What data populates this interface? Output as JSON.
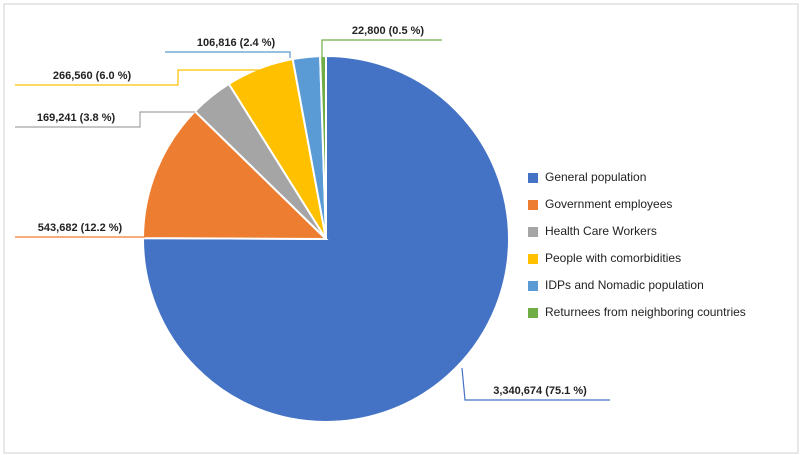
{
  "chart_data": {
    "type": "pie",
    "categories": [
      "General population",
      "Government employees",
      "Health Care Workers",
      "People with comorbidities",
      "IDPs and Nomadic population",
      "Returnees from neighboring countries"
    ],
    "values": [
      3340674,
      543682,
      169241,
      266560,
      106816,
      22800
    ],
    "value_labels": [
      "3,340,674 (75.1 %)",
      "543,682 (12.2 %)",
      "169,241 (3.8 %)",
      "266,560 (6.0 %)",
      "106,816 (2.4 %)",
      "22,800 (0.5 %)"
    ],
    "colors": [
      "#4472c4",
      "#ed7d31",
      "#a5a5a5",
      "#ffc000",
      "#5b9bd5",
      "#70ad47"
    ],
    "legend": "right"
  }
}
